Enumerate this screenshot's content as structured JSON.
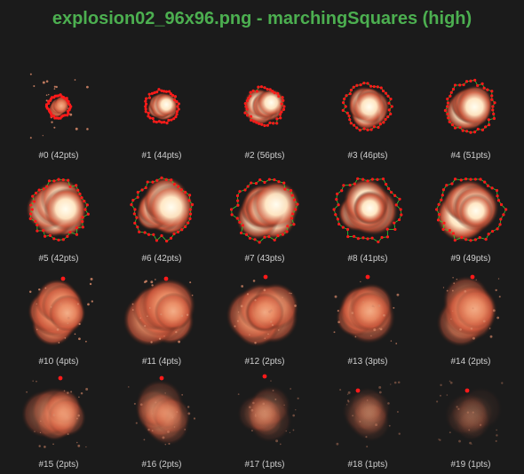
{
  "window": {
    "title": "explosion02_96x96.png - marchingSquares (high)"
  },
  "colors": {
    "title": "#4caf50",
    "background": "#1b1b1b",
    "caption": "#cfcfcf",
    "outline_green": "#33cc33",
    "point_red": "#ff1a1a"
  },
  "frames": [
    {
      "label": "#0 (42pts)",
      "points": 42
    },
    {
      "label": "#1 (44pts)",
      "points": 44
    },
    {
      "label": "#2 (56pts)",
      "points": 56
    },
    {
      "label": "#3 (46pts)",
      "points": 46
    },
    {
      "label": "#4 (51pts)",
      "points": 51
    },
    {
      "label": "#5 (42pts)",
      "points": 42
    },
    {
      "label": "#6 (42pts)",
      "points": 42
    },
    {
      "label": "#7 (43pts)",
      "points": 43
    },
    {
      "label": "#8 (41pts)",
      "points": 41
    },
    {
      "label": "#9 (49pts)",
      "points": 49
    },
    {
      "label": "#10 (4pts)",
      "points": 4
    },
    {
      "label": "#11 (4pts)",
      "points": 4
    },
    {
      "label": "#12 (2pts)",
      "points": 2
    },
    {
      "label": "#13 (3pts)",
      "points": 3
    },
    {
      "label": "#14 (2pts)",
      "points": 2
    },
    {
      "label": "#15 (2pts)",
      "points": 2
    },
    {
      "label": "#16 (2pts)",
      "points": 2
    },
    {
      "label": "#17 (1pts)",
      "points": 1
    },
    {
      "label": "#18 (1pts)",
      "points": 1
    },
    {
      "label": "#19 (1pts)",
      "points": 1
    }
  ]
}
